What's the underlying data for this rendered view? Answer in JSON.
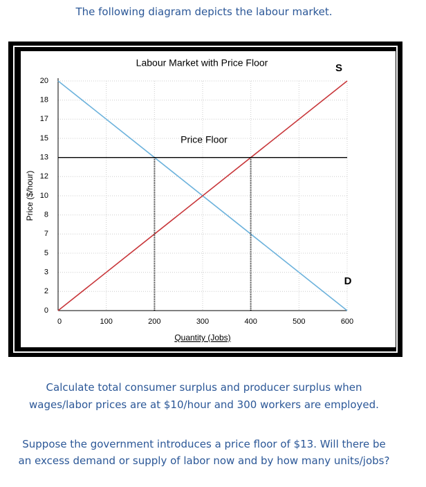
{
  "header": "The following diagram depicts the labour market.",
  "chart_data": {
    "type": "line",
    "title": "Labour Market with Price Floor",
    "x_label": "Quantity (Jobs)",
    "y_label": "Price ($/hour)",
    "xlim": [
      0,
      600
    ],
    "ylim": [
      0,
      20
    ],
    "xticks": [
      0,
      100,
      200,
      300,
      400,
      500,
      600
    ],
    "yticks": [
      0,
      {
        "value": 1.67,
        "label": "2"
      },
      {
        "value": 3.33,
        "label": "3"
      },
      5,
      {
        "value": 6.67,
        "label": "7"
      },
      {
        "value": 8.33,
        "label": "8"
      },
      10,
      {
        "value": 11.67,
        "label": "12"
      },
      {
        "value": 13.33,
        "label": "13"
      },
      15,
      {
        "value": 16.67,
        "label": "17"
      },
      {
        "value": 18.33,
        "label": "18"
      },
      20
    ],
    "grid": true,
    "series": [
      {
        "name": "D",
        "color": "#6cb2dc",
        "x": [
          0,
          600
        ],
        "values": [
          20,
          0
        ]
      },
      {
        "name": "S",
        "color": "#c8363a",
        "x": [
          0,
          600
        ],
        "values": [
          0,
          20
        ]
      }
    ],
    "price_floor": {
      "label": "Price Floor",
      "value": 13.33,
      "color": "#000000"
    }
  },
  "paragraphs": [
    [
      "Calculate total consumer surplus and producer surplus when",
      "wages/labor prices are at $10/hour and 300 workers are employed."
    ],
    [
      "Suppose the government introduces a price floor of $13. Will there be",
      "an excess demand or supply of labor now and by how many units/jobs?"
    ]
  ]
}
